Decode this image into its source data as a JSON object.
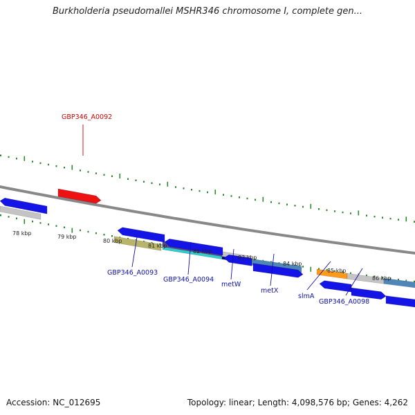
{
  "title": "Burkholderia pseudomallei MSHR346 chromosome I, complete gen...",
  "footer": {
    "accession": "Accession: NC_012695",
    "topology": "Topology: linear; Length: 4,098,576 bp; Genes: 4,262"
  },
  "colors": {
    "backbone": "#888888",
    "ruler_ticks": "#2a8a2a",
    "gene_blue": "#1414e6",
    "gene_red": "#ee1111",
    "label_blue": "#1010aa",
    "label_red": "#cc0000",
    "ruler_text": "#222222"
  },
  "ruler": {
    "unit": "kbp",
    "tick_labels": [
      "78 kbp",
      "79 kbp",
      "80 kbp",
      "81 kbp",
      "82 kbp",
      "83 kbp",
      "84 kbp",
      "85 kbp",
      "86 kbp"
    ]
  },
  "genes": [
    {
      "id": "g_left_edge",
      "strand": "reverse",
      "color": "#1414e6",
      "label": ""
    },
    {
      "id": "GBP346_A0092",
      "strand": "forward",
      "color": "#ee1111",
      "label": "GBP346_A0092"
    },
    {
      "id": "GBP346_A0093",
      "strand": "reverse",
      "color": "#1414e6",
      "label": "GBP346_A0093"
    },
    {
      "id": "GBP346_A0094",
      "strand": "reverse",
      "color": "#1414e6",
      "label": "GBP346_A0094"
    },
    {
      "id": "metW",
      "strand": "reverse",
      "color": "#1414e6",
      "label": "metW"
    },
    {
      "id": "metX",
      "strand": "forward",
      "color": "#1414e6",
      "label": "metX"
    },
    {
      "id": "g_a0097",
      "strand": "reverse",
      "color": "#1414e6",
      "label": ""
    },
    {
      "id": "slmA",
      "strand": "forward",
      "color": "#1414e6",
      "label": "slmA"
    },
    {
      "id": "GBP346_A0098",
      "strand": "forward",
      "color": "#1414e6",
      "label": "GBP346_A0098"
    }
  ],
  "features": [
    {
      "id": "f_left",
      "color": "#c4c4c4"
    },
    {
      "id": "f_a0093",
      "color": "#b8b46a"
    },
    {
      "id": "f_a0094_a",
      "color": "#5a4a8a"
    },
    {
      "id": "f_a0094_b",
      "color": "#33cccc"
    },
    {
      "id": "f_metW_a",
      "color": "#c4c4c4"
    },
    {
      "id": "f_metW_b",
      "color": "#0a0a80"
    },
    {
      "id": "f_metX",
      "color": "#4f86b8"
    },
    {
      "id": "f_orange",
      "color": "#ff9a1a"
    },
    {
      "id": "f_grey2",
      "color": "#c4c4c4"
    },
    {
      "id": "f_steel2",
      "color": "#4f86b8"
    }
  ]
}
